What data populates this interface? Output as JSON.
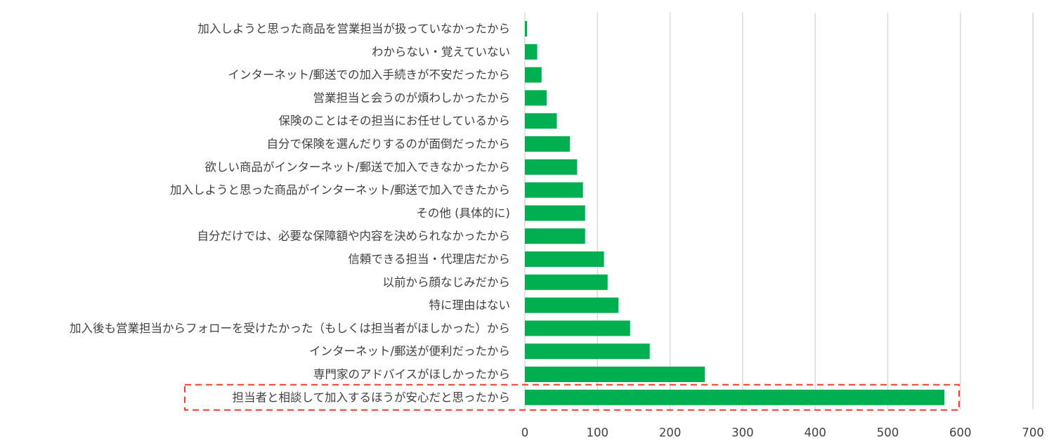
{
  "chart_data": {
    "type": "bar",
    "orientation": "horizontal",
    "categories": [
      "加入しようと思った商品を営業担当が扱っていなかったから",
      "わからない・覚えていない",
      "インターネット/郵送での加入手続きが不安だったから",
      "営業担当と会うのが煩わしかったから",
      "保険のことはその担当にお任せしているから",
      "自分で保険を選んだりするのが面倒だったから",
      "欲しい商品がインターネット/郵送で加入できなかったから",
      "加入しようと思った商品がインターネット/郵送で加入できたから",
      "その他 (具体的に)",
      "自分だけでは、必要な保障額や内容を決められなかったから",
      "信頼できる担当・代理店だから",
      "以前から顔なじみだから",
      "特に理由はない",
      "加入後も営業担当からフォローを受けたかった（もしくは担当者がほしかった）から",
      "インターネット/郵送が便利だったから",
      "専門家のアドバイスがほしかったから",
      "担当者と相談して加入するほうが安心だと思ったから"
    ],
    "values": [
      3,
      17,
      23,
      30,
      44,
      62,
      72,
      80,
      83,
      83,
      109,
      114,
      129,
      145,
      172,
      248,
      578
    ],
    "xlim": [
      0,
      700
    ],
    "xticks": [
      0,
      100,
      200,
      300,
      400,
      500,
      600,
      700
    ],
    "highlighted_category_index": 16,
    "grid": "vertical",
    "title": "",
    "xlabel": "",
    "ylabel": ""
  },
  "colors": {
    "bar": "#00b050",
    "grid": "#d9d9d9",
    "highlight": "#ff3b1f",
    "text": "#404040"
  }
}
